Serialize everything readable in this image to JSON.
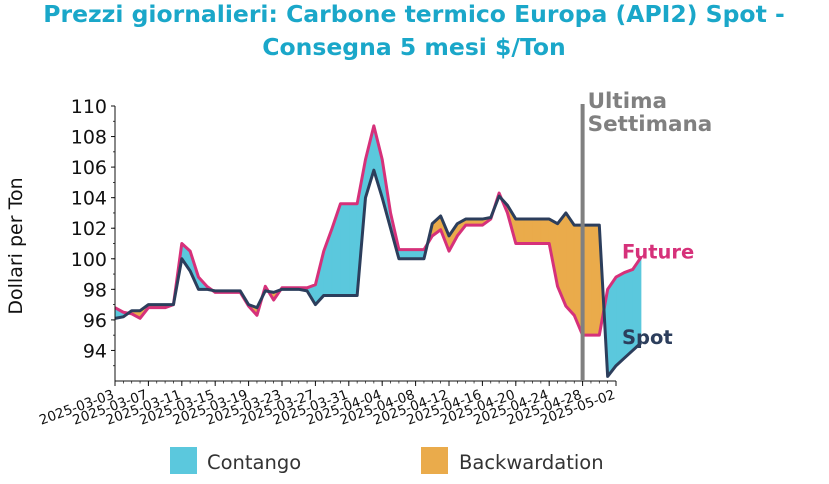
{
  "chart_data": {
    "type": "line",
    "title_line1": "Prezzi giornalieri: Carbone termico Europa (API2) Spot -",
    "title_line2": "Consegna 5 mesi $/Ton",
    "ylabel": "Dollari per Ton",
    "xlabel": "",
    "ylim": [
      92,
      110
    ],
    "yticks": [
      "94",
      "96",
      "98",
      "100",
      "102",
      "104",
      "106",
      "108",
      "110"
    ],
    "xlim": [
      "2025-03-03",
      "2025-05-02"
    ],
    "xticks": [
      "2025-03-03",
      "2025-03-07",
      "2025-03-11",
      "2025-03-15",
      "2025-03-19",
      "2025-03-23",
      "2025-03-27",
      "2025-03-31",
      "2025-04-04",
      "2025-04-08",
      "2025-04-12",
      "2025-04-16",
      "2025-04-20",
      "2025-04-24",
      "2025-04-28",
      "2025-05-02"
    ],
    "grid": false,
    "legend_position": "bottom",
    "legend": [
      {
        "label": "Contango",
        "color": "#5bc8dd"
      },
      {
        "label": "Backwardation",
        "color": "#eaab4b"
      }
    ],
    "annotation": {
      "line1": "Ultima",
      "line2": "Settimana",
      "date": "2025-04-28"
    },
    "series": [
      {
        "name": "Future",
        "color": "#d6317a",
        "points": [
          [
            "2025-03-03",
            96.8
          ],
          [
            "2025-03-04",
            96.5
          ],
          [
            "2025-03-05",
            96.4
          ],
          [
            "2025-03-06",
            96.1
          ],
          [
            "2025-03-07",
            96.8
          ],
          [
            "2025-03-08",
            96.8
          ],
          [
            "2025-03-09",
            96.8
          ],
          [
            "2025-03-10",
            97.0
          ],
          [
            "2025-03-11",
            101.0
          ],
          [
            "2025-03-12",
            100.5
          ],
          [
            "2025-03-13",
            98.8
          ],
          [
            "2025-03-14",
            98.2
          ],
          [
            "2025-03-15",
            97.8
          ],
          [
            "2025-03-16",
            97.8
          ],
          [
            "2025-03-17",
            97.8
          ],
          [
            "2025-03-18",
            97.8
          ],
          [
            "2025-03-19",
            96.9
          ],
          [
            "2025-03-20",
            96.3
          ],
          [
            "2025-03-21",
            98.2
          ],
          [
            "2025-03-22",
            97.3
          ],
          [
            "2025-03-23",
            98.1
          ],
          [
            "2025-03-24",
            98.1
          ],
          [
            "2025-03-25",
            98.1
          ],
          [
            "2025-03-26",
            98.1
          ],
          [
            "2025-03-27",
            98.3
          ],
          [
            "2025-03-28",
            100.5
          ],
          [
            "2025-03-29",
            102.0
          ],
          [
            "2025-03-30",
            103.6
          ],
          [
            "2025-03-31",
            103.6
          ],
          [
            "2025-04-01",
            103.6
          ],
          [
            "2025-04-02",
            106.5
          ],
          [
            "2025-04-03",
            108.7
          ],
          [
            "2025-04-04",
            106.5
          ],
          [
            "2025-04-05",
            103.0
          ],
          [
            "2025-04-06",
            100.6
          ],
          [
            "2025-04-07",
            100.6
          ],
          [
            "2025-04-08",
            100.6
          ],
          [
            "2025-04-09",
            100.6
          ],
          [
            "2025-04-10",
            101.5
          ],
          [
            "2025-04-11",
            101.9
          ],
          [
            "2025-04-12",
            100.5
          ],
          [
            "2025-04-13",
            101.5
          ],
          [
            "2025-04-14",
            102.2
          ],
          [
            "2025-04-15",
            102.2
          ],
          [
            "2025-04-16",
            102.2
          ],
          [
            "2025-04-17",
            102.6
          ],
          [
            "2025-04-18",
            104.3
          ],
          [
            "2025-04-19",
            103.0
          ],
          [
            "2025-04-20",
            101.0
          ],
          [
            "2025-04-21",
            101.0
          ],
          [
            "2025-04-22",
            101.0
          ],
          [
            "2025-04-23",
            101.0
          ],
          [
            "2025-04-24",
            101.0
          ],
          [
            "2025-04-25",
            98.2
          ],
          [
            "2025-04-26",
            96.9
          ],
          [
            "2025-04-27",
            96.3
          ],
          [
            "2025-04-28",
            95.0
          ],
          [
            "2025-04-29",
            95.0
          ],
          [
            "2025-04-30",
            95.0
          ],
          [
            "2025-05-01",
            98.0
          ],
          [
            "2025-05-02",
            98.8
          ],
          [
            "2025-05-03",
            99.1
          ],
          [
            "2025-05-04",
            99.3
          ],
          [
            "2025-05-05",
            100.1
          ]
        ]
      },
      {
        "name": "Spot",
        "color": "#2c3e5c",
        "points": [
          [
            "2025-03-03",
            96.1
          ],
          [
            "2025-03-04",
            96.2
          ],
          [
            "2025-03-05",
            96.6
          ],
          [
            "2025-03-06",
            96.6
          ],
          [
            "2025-03-07",
            97.0
          ],
          [
            "2025-03-08",
            97.0
          ],
          [
            "2025-03-09",
            97.0
          ],
          [
            "2025-03-10",
            97.0
          ],
          [
            "2025-03-11",
            100.0
          ],
          [
            "2025-03-12",
            99.2
          ],
          [
            "2025-03-13",
            98.0
          ],
          [
            "2025-03-14",
            98.0
          ],
          [
            "2025-03-15",
            97.9
          ],
          [
            "2025-03-16",
            97.9
          ],
          [
            "2025-03-17",
            97.9
          ],
          [
            "2025-03-18",
            97.9
          ],
          [
            "2025-03-19",
            97.0
          ],
          [
            "2025-03-20",
            96.8
          ],
          [
            "2025-03-21",
            97.9
          ],
          [
            "2025-03-22",
            97.8
          ],
          [
            "2025-03-23",
            98.0
          ],
          [
            "2025-03-24",
            98.0
          ],
          [
            "2025-03-25",
            98.0
          ],
          [
            "2025-03-26",
            97.9
          ],
          [
            "2025-03-27",
            97.0
          ],
          [
            "2025-03-28",
            97.6
          ],
          [
            "2025-03-29",
            97.6
          ],
          [
            "2025-03-30",
            97.6
          ],
          [
            "2025-03-31",
            97.6
          ],
          [
            "2025-04-01",
            97.6
          ],
          [
            "2025-04-02",
            104.0
          ],
          [
            "2025-04-03",
            105.8
          ],
          [
            "2025-04-04",
            104.0
          ],
          [
            "2025-04-05",
            102.0
          ],
          [
            "2025-04-06",
            100.0
          ],
          [
            "2025-04-07",
            100.0
          ],
          [
            "2025-04-08",
            100.0
          ],
          [
            "2025-04-09",
            100.0
          ],
          [
            "2025-04-10",
            102.3
          ],
          [
            "2025-04-11",
            102.8
          ],
          [
            "2025-04-12",
            101.5
          ],
          [
            "2025-04-13",
            102.3
          ],
          [
            "2025-04-14",
            102.6
          ],
          [
            "2025-04-15",
            102.6
          ],
          [
            "2025-04-16",
            102.6
          ],
          [
            "2025-04-17",
            102.7
          ],
          [
            "2025-04-18",
            104.1
          ],
          [
            "2025-04-19",
            103.5
          ],
          [
            "2025-04-20",
            102.6
          ],
          [
            "2025-04-21",
            102.6
          ],
          [
            "2025-04-22",
            102.6
          ],
          [
            "2025-04-23",
            102.6
          ],
          [
            "2025-04-24",
            102.6
          ],
          [
            "2025-04-25",
            102.3
          ],
          [
            "2025-04-26",
            103.0
          ],
          [
            "2025-04-27",
            102.2
          ],
          [
            "2025-04-28",
            102.2
          ],
          [
            "2025-04-29",
            102.2
          ],
          [
            "2025-04-30",
            102.2
          ],
          [
            "2025-05-01",
            92.3
          ],
          [
            "2025-05-02",
            93.0
          ],
          [
            "2025-05-03",
            93.5
          ],
          [
            "2025-05-04",
            94.0
          ],
          [
            "2025-05-05",
            94.5
          ]
        ]
      }
    ]
  }
}
